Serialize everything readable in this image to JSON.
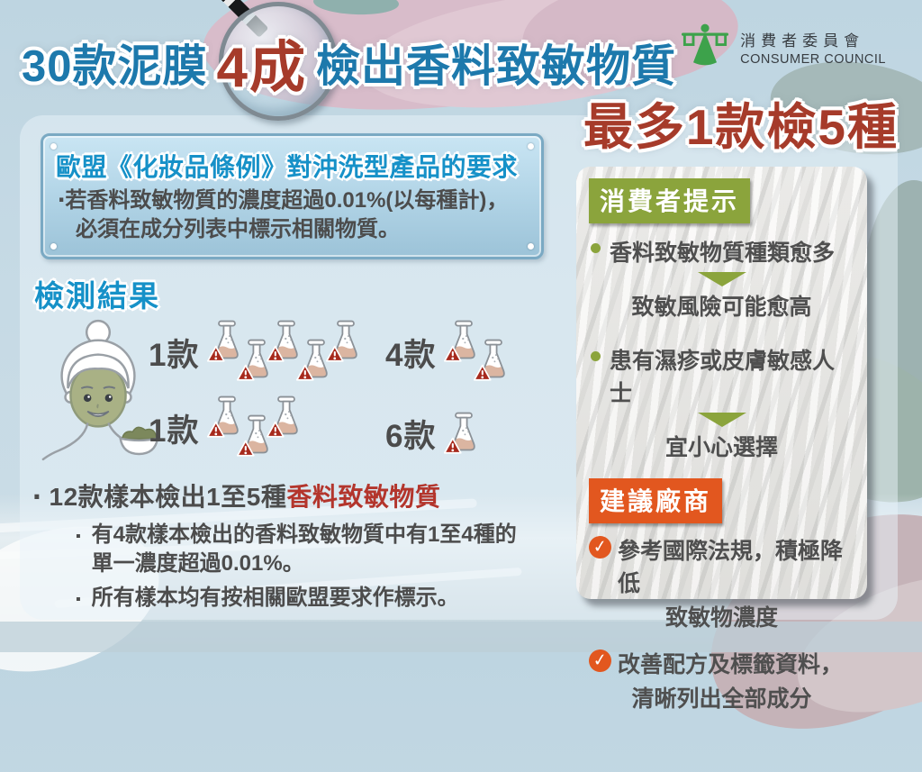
{
  "header": {
    "title_prefix": "30款泥膜",
    "title_highlight": "4成",
    "title_suffix": "檢出香料致敏物質",
    "subtitle": "最多1款檢5種",
    "logo_cn": "消費者委員會",
    "logo_en": "CONSUMER COUNCIL"
  },
  "regulation_box": {
    "title": "歐盟《化妝品條例》對沖洗型產品的要求",
    "line1": "‧若香料致敏物質的濃度超過0.01%(以每種計)，",
    "line2": "必須在成分列表中標示相關物質。"
  },
  "results": {
    "heading": "檢測結果",
    "groups": [
      {
        "label": "1款",
        "flasks": 5
      },
      {
        "label": "4款",
        "flasks": 2
      },
      {
        "label": "1款",
        "flasks": 3
      },
      {
        "label": "6款",
        "flasks": 1
      }
    ],
    "summary_bullet": "‧",
    "summary_plain": "12款樣本檢出1至5種",
    "summary_red": "香料致敏物質",
    "note_bullet": "▪",
    "notes": [
      [
        "有4款樣本檢出的香料致敏物質中有1至4種的",
        "單一濃度超過0.01%。"
      ],
      [
        "所有樣本均有按相關歐盟要求作標示。"
      ]
    ]
  },
  "consumer_tips": {
    "heading": "消費者提示",
    "tips": [
      {
        "cause": "香料致敏物質種類愈多",
        "effect": "致敏風險可能愈高"
      },
      {
        "cause": "患有濕疹或皮膚敏感人士",
        "effect": "宜小心選擇"
      }
    ]
  },
  "manufacturer_advice": {
    "heading": "建議廠商",
    "check_glyph": "✓",
    "items": [
      {
        "line1": "參考國際法規，積極降低",
        "line2": "致敏物濃度"
      },
      {
        "line1": "改善配方及標籤資料，",
        "line2": "清晰列出全部成分"
      }
    ]
  },
  "colors": {
    "title_blue": "#1d79ac",
    "highlight_red": "#a63b2a",
    "heading_blue": "#1691c8",
    "text_dark": "#4c4c4c",
    "red_text": "#b3352c",
    "tip_green": "#8ba43c",
    "advice_orange": "#e2571f",
    "flask_liquid": "#dbb5a1",
    "warning_red": "#a72a1d"
  }
}
